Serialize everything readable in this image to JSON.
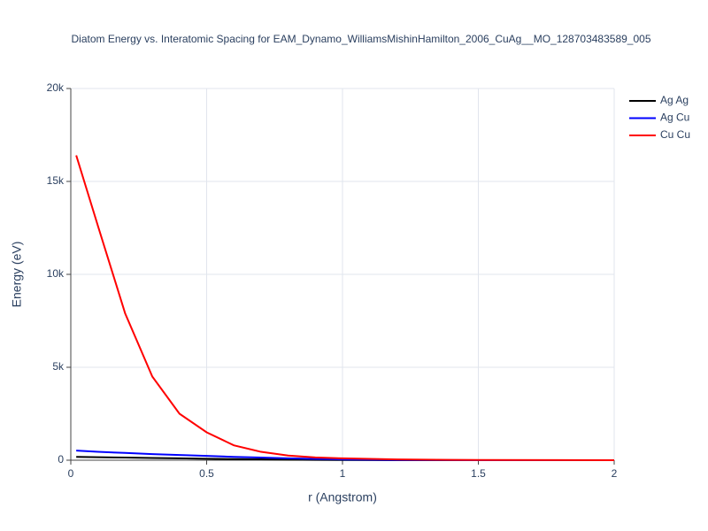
{
  "chart_data": {
    "type": "line",
    "title": "Diatom Energy vs. Interatomic Spacing for EAM_Dynamo_WilliamsMishinHamilton_2006_CuAg__MO_128703483589_005",
    "x_label": "r (Angstrom)",
    "y_label": "Energy (eV)",
    "x": [
      0.02,
      0.1,
      0.2,
      0.3,
      0.4,
      0.5,
      0.6,
      0.7,
      0.8,
      0.9,
      1.0,
      1.2,
      1.5,
      2.0
    ],
    "series": [
      {
        "name": "Ag Ag",
        "color": "#000000",
        "values": [
          180,
          160,
          140,
          120,
          100,
          80,
          60,
          45,
          30,
          20,
          10,
          0,
          0,
          0
        ]
      },
      {
        "name": "Ag Cu",
        "color": "#0000ff",
        "values": [
          520,
          450,
          390,
          330,
          280,
          230,
          180,
          140,
          100,
          70,
          40,
          10,
          0,
          0
        ]
      },
      {
        "name": "Cu Cu",
        "color": "#ff0000",
        "values": [
          16400,
          12600,
          7900,
          4500,
          2500,
          1500,
          800,
          450,
          250,
          150,
          100,
          40,
          10,
          0
        ]
      }
    ],
    "xlim": [
      0,
      2
    ],
    "xticks": [
      0,
      0.5,
      1,
      1.5,
      2
    ],
    "ylim": [
      0,
      20000
    ],
    "yticks": [
      0,
      {
        "value": 5000,
        "label": "5k"
      },
      {
        "value": 10000,
        "label": "10k"
      },
      {
        "value": 15000,
        "label": "15k"
      },
      {
        "value": 20000,
        "label": "20k"
      }
    ],
    "grid": true
  }
}
